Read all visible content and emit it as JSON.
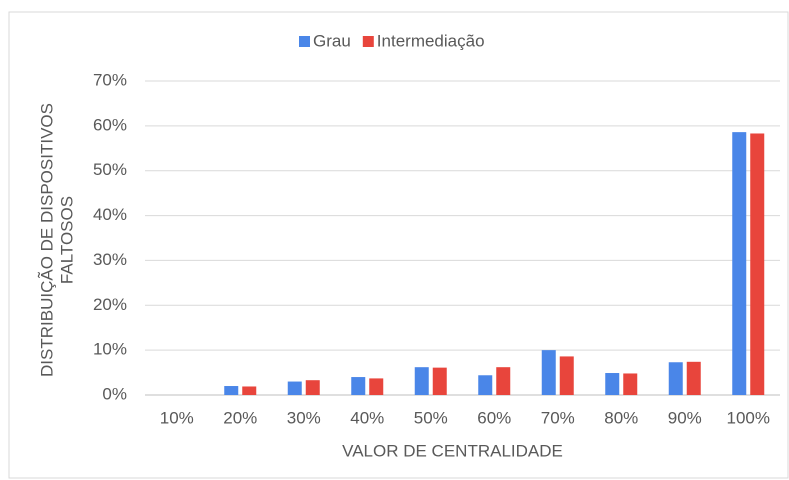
{
  "chart_data": {
    "type": "bar",
    "categories": [
      "10%",
      "20%",
      "30%",
      "40%",
      "50%",
      "60%",
      "70%",
      "80%",
      "90%",
      "100%"
    ],
    "series": [
      {
        "name": "Grau",
        "color": "#4a86e8",
        "values": [
          0,
          2.0,
          3.0,
          4.0,
          6.2,
          4.4,
          10.0,
          4.9,
          7.3,
          58.6
        ]
      },
      {
        "name": "Intermediação",
        "color": "#e8453c",
        "values": [
          0,
          1.9,
          3.3,
          3.7,
          6.1,
          6.2,
          8.6,
          4.8,
          7.4,
          58.3
        ]
      }
    ],
    "x_label": "VALOR DE CENTRALIDADE",
    "y_label": [
      "DISTRIBUIÇÃO DE DISPOSITIVOS",
      "FALTOSOS"
    ],
    "ylim": [
      0,
      70
    ],
    "yticks": [
      {
        "value": 0,
        "label": "0%"
      },
      {
        "value": 10,
        "label": "10%"
      },
      {
        "value": 20,
        "label": "20%"
      },
      {
        "value": 30,
        "label": "30%"
      },
      {
        "value": 40,
        "label": "40%"
      },
      {
        "value": 50,
        "label": "50%"
      },
      {
        "value": 60,
        "label": "60%"
      },
      {
        "value": 70,
        "label": "70%"
      }
    ],
    "grid": true,
    "legend": "top"
  }
}
